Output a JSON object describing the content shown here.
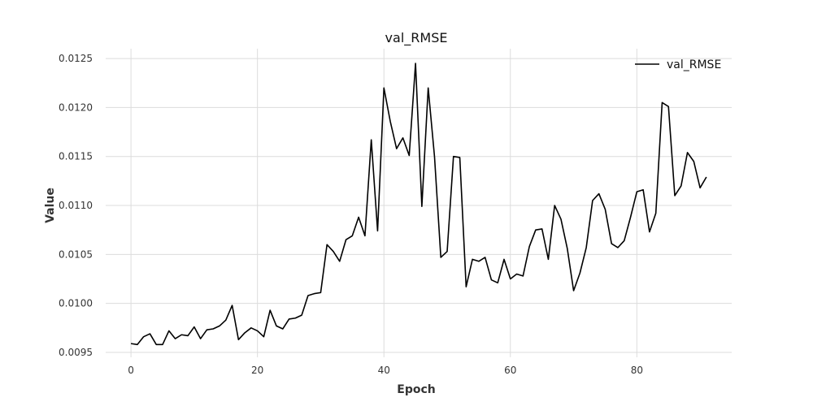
{
  "chart_data": {
    "type": "line",
    "title": "val_RMSE",
    "xlabel": "Epoch",
    "ylabel": "Value",
    "xlim": [
      -4,
      95
    ],
    "ylim": [
      0.00945,
      0.0126
    ],
    "x_ticks": [
      0,
      20,
      40,
      60,
      80
    ],
    "y_ticks": [
      0.0095,
      0.01,
      0.0105,
      0.011,
      0.0115,
      0.012,
      0.0125
    ],
    "y_tick_labels": [
      "0.0095",
      "0.0100",
      "0.0105",
      "0.0110",
      "0.0115",
      "0.0120",
      "0.0125"
    ],
    "grid": true,
    "legend": {
      "position": "top-right",
      "entries": [
        "val_RMSE"
      ]
    },
    "series": [
      {
        "name": "val_RMSE",
        "color": "#000000",
        "x": [
          0,
          1,
          2,
          3,
          4,
          5,
          6,
          7,
          8,
          9,
          10,
          11,
          12,
          13,
          14,
          15,
          16,
          17,
          18,
          19,
          20,
          21,
          22,
          23,
          24,
          25,
          26,
          27,
          28,
          29,
          30,
          31,
          32,
          33,
          34,
          35,
          36,
          37,
          38,
          39,
          40,
          41,
          42,
          43,
          44,
          45,
          46,
          47,
          48,
          49,
          50,
          51,
          52,
          53,
          54,
          55,
          56,
          57,
          58,
          59,
          60,
          61,
          62,
          63,
          64,
          65,
          66,
          67,
          68,
          69,
          70,
          71,
          72,
          73,
          74,
          75,
          76,
          77,
          78,
          79,
          80,
          81,
          82,
          83,
          84,
          85,
          86,
          87,
          88,
          89,
          90,
          91
        ],
        "values": [
          0.00959,
          0.00958,
          0.00966,
          0.00969,
          0.00958,
          0.00958,
          0.00972,
          0.00964,
          0.00968,
          0.00967,
          0.00976,
          0.00964,
          0.00973,
          0.00974,
          0.00977,
          0.00983,
          0.00998,
          0.00963,
          0.0097,
          0.00975,
          0.00972,
          0.00966,
          0.00993,
          0.00977,
          0.00974,
          0.00984,
          0.00985,
          0.00988,
          0.01008,
          0.0101,
          0.01011,
          0.0106,
          0.01053,
          0.01043,
          0.01065,
          0.01069,
          0.01088,
          0.01069,
          0.01167,
          0.01074,
          0.0122,
          0.01186,
          0.01158,
          0.01169,
          0.01151,
          0.01245,
          0.01099,
          0.0122,
          0.0115,
          0.01047,
          0.01053,
          0.0115,
          0.01149,
          0.01017,
          0.01045,
          0.01043,
          0.01047,
          0.01024,
          0.01021,
          0.01045,
          0.01025,
          0.0103,
          0.01028,
          0.01058,
          0.01075,
          0.01076,
          0.01045,
          0.011,
          0.01086,
          0.01056,
          0.01013,
          0.01031,
          0.01057,
          0.01105,
          0.01112,
          0.01096,
          0.01061,
          0.01057,
          0.01064,
          0.01088,
          0.01114,
          0.01116,
          0.01073,
          0.01092,
          0.01205,
          0.01201,
          0.0111,
          0.0112,
          0.01154,
          0.01145,
          0.01118,
          0.01129
        ]
      }
    ]
  }
}
